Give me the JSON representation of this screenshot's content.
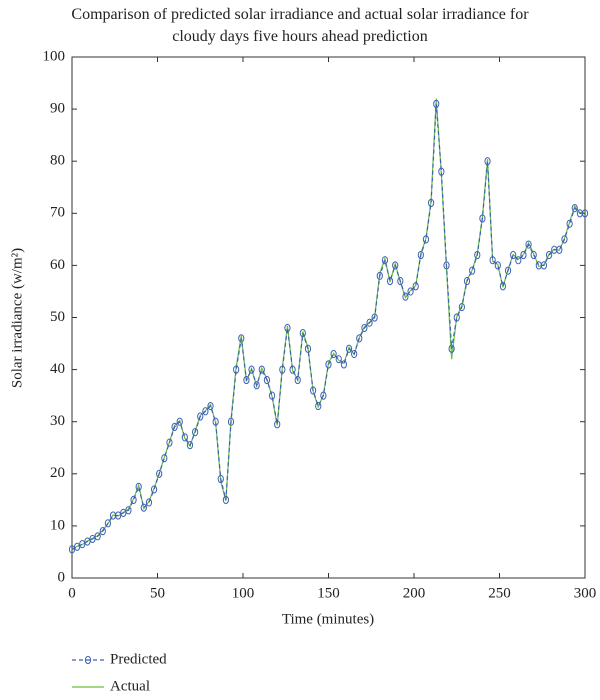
{
  "chart_data": {
    "type": "line",
    "title": "Comparison of predicted solar irradiance and actual solar irradiance for cloudy days five hours ahead prediction",
    "xlabel": "Time (minutes)",
    "ylabel": "Solar irradiance (w/m²)",
    "x": [
      0,
      3,
      6,
      9,
      12,
      15,
      18,
      21,
      24,
      27,
      30,
      33,
      36,
      39,
      42,
      45,
      48,
      51,
      54,
      57,
      60,
      63,
      66,
      69,
      72,
      75,
      78,
      81,
      84,
      87,
      90,
      93,
      96,
      99,
      102,
      105,
      108,
      111,
      114,
      117,
      120,
      123,
      126,
      129,
      132,
      135,
      138,
      141,
      144,
      147,
      150,
      153,
      156,
      159,
      162,
      165,
      168,
      171,
      174,
      177,
      180,
      183,
      186,
      189,
      192,
      195,
      198,
      201,
      204,
      207,
      210,
      213,
      216,
      219,
      222,
      225,
      228,
      231,
      234,
      237,
      240,
      243,
      246,
      249,
      252,
      255,
      258,
      261,
      264,
      267,
      270,
      273,
      276,
      279,
      282,
      285,
      288,
      291,
      294,
      297,
      300
    ],
    "series": [
      {
        "name": "Predicted",
        "color": "#3f5fb5",
        "dashed": true,
        "markers": true,
        "values": [
          5.5,
          6,
          6.5,
          7,
          7.5,
          8,
          9,
          10.5,
          12,
          12,
          12.5,
          13,
          15,
          17.5,
          13.5,
          14.5,
          17,
          20,
          23,
          26,
          29,
          30,
          27,
          25.5,
          28,
          31,
          32,
          33,
          30,
          19,
          15,
          30,
          40,
          46,
          38,
          40,
          37,
          40,
          38,
          35,
          29.5,
          40,
          48,
          40,
          38,
          47,
          44,
          36,
          33,
          35,
          41,
          43,
          42,
          41,
          44,
          43,
          46,
          48,
          49,
          50,
          58,
          61,
          57,
          60,
          57,
          54,
          55,
          56,
          62,
          65,
          72,
          91,
          78,
          60,
          44,
          50,
          52,
          57,
          59,
          62,
          69,
          80,
          61,
          60,
          56,
          59,
          62,
          61,
          62,
          64,
          62,
          60,
          60,
          62,
          63,
          63,
          65,
          68,
          71,
          70,
          70
        ]
      },
      {
        "name": "Actual",
        "color": "#66c23f",
        "dashed": false,
        "markers": false,
        "values": [
          5.4,
          6.1,
          6.4,
          7.1,
          7.6,
          8.1,
          9.2,
          10.4,
          12.1,
          11.9,
          12.6,
          13.2,
          15.2,
          17.8,
          13.3,
          14.7,
          17.2,
          20.1,
          23.2,
          26.1,
          29.3,
          30.2,
          26.8,
          25.3,
          28.2,
          31.2,
          32.1,
          33.3,
          29.8,
          18.5,
          14.8,
          30.4,
          40.5,
          46.5,
          37.8,
          40.2,
          36.8,
          40.3,
          38.2,
          34.8,
          29.3,
          40.4,
          48.4,
          39.8,
          38.1,
          47.3,
          44.2,
          35.8,
          32.8,
          35.2,
          41.3,
          43.1,
          41.8,
          41.2,
          44.3,
          42.9,
          46.2,
          48.2,
          49.1,
          50.2,
          58.5,
          61.3,
          56.8,
          60.3,
          56.8,
          53.8,
          55.2,
          56.1,
          62.3,
          65.2,
          72.5,
          92,
          77.5,
          59.5,
          42,
          50.2,
          52.3,
          57.2,
          59.1,
          62.2,
          69.3,
          80.4,
          60.8,
          60.2,
          55.8,
          59.2,
          62.1,
          61.2,
          62.1,
          64.3,
          62.2,
          59.8,
          60.1,
          62.2,
          63.1,
          62.9,
          65.2,
          68.3,
          71.4,
          70.1,
          70.2
        ]
      }
    ],
    "xlim": [
      0,
      300
    ],
    "xticks": [
      0,
      50,
      100,
      150,
      200,
      250,
      300
    ],
    "ylim": [
      0,
      100
    ],
    "yticks": [
      0,
      10,
      20,
      30,
      40,
      50,
      60,
      70,
      80,
      90,
      100
    ]
  }
}
